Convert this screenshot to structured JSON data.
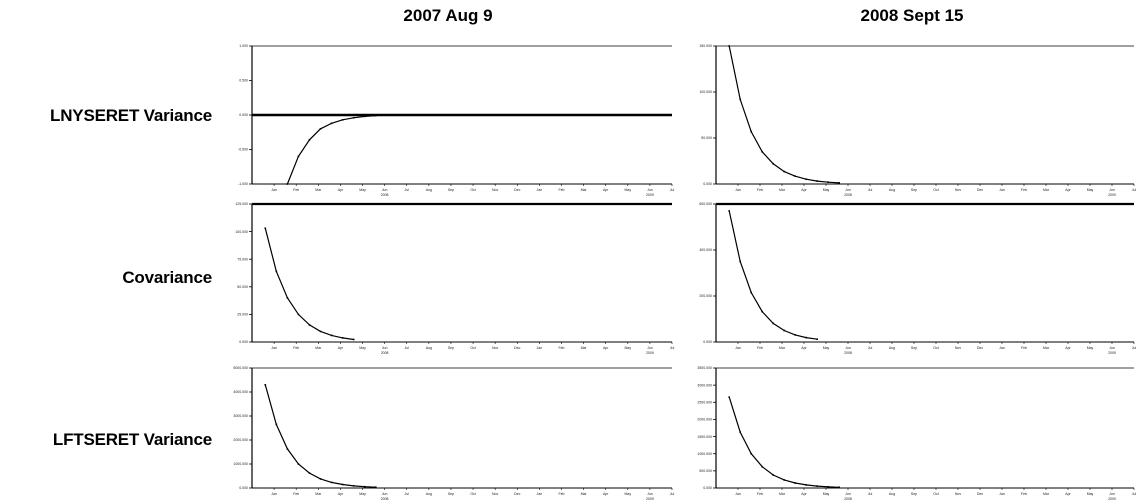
{
  "columns": [
    "2007 Aug 9",
    "2008 Sept 15"
  ],
  "rows": [
    "LNYSERET Variance",
    "Covariance",
    "LFTSERET Variance"
  ],
  "chart_data": [
    {
      "type": "line",
      "title": "2007 Aug 9",
      "row": "LNYSERET Variance",
      "x": [
        1,
        1.5,
        2,
        2.5,
        3,
        3.5,
        4,
        4.5,
        5
      ],
      "y": [
        -1.0,
        -0.6,
        -0.36,
        -0.2,
        -0.12,
        -0.07,
        -0.04,
        -0.02,
        -0.01
      ],
      "ylim": [
        -1.0,
        1.0
      ],
      "baseline": 0,
      "ytick_labels": [
        "-1.000",
        "-0.500",
        "0.000",
        "0.500",
        "1.000"
      ]
    },
    {
      "type": "line",
      "title": "2008 Sept 15",
      "row": "LNYSERET Variance",
      "x": [
        0,
        0.5,
        1,
        1.5,
        2,
        2.5,
        3,
        3.5,
        4,
        4.5,
        5
      ],
      "y": [
        150000,
        92000,
        57000,
        35000,
        22000,
        13500,
        8500,
        5200,
        3200,
        2000,
        1200
      ],
      "ylim": [
        0,
        150000
      ],
      "ytick_labels": [
        "0.000",
        "50.000",
        "100.000",
        "150.000"
      ]
    },
    {
      "type": "line",
      "title": "2007 Aug 9",
      "row": "Covariance",
      "x": [
        0,
        0.5,
        1,
        1.5,
        2,
        2.5,
        3,
        3.5,
        4
      ],
      "y": [
        103000,
        64000,
        40000,
        25000,
        15500,
        9600,
        6000,
        3700,
        2300
      ],
      "ylim": [
        0,
        125000
      ],
      "ytick_labels": [
        "0.000",
        "25.000",
        "50.000",
        "75.000",
        "100.000",
        "125.000"
      ]
    },
    {
      "type": "line",
      "title": "2008 Sept 15",
      "row": "Covariance",
      "x": [
        0,
        0.5,
        1,
        1.5,
        2,
        2.5,
        3,
        3.5,
        4
      ],
      "y": [
        570000,
        350000,
        215000,
        132000,
        81000,
        50000,
        31000,
        19000,
        12000
      ],
      "ylim": [
        0,
        600000
      ],
      "ytick_labels": [
        "0.000",
        "200.000",
        "400.000",
        "600.000"
      ]
    },
    {
      "type": "line",
      "title": "2007 Aug 9",
      "row": "LFTSERET Variance",
      "x": [
        0,
        0.5,
        1,
        1.5,
        2,
        2.5,
        3,
        3.5,
        4,
        4.5,
        5
      ],
      "y": [
        4300000,
        2650000,
        1630000,
        1000000,
        620000,
        380000,
        235000,
        145000,
        89000,
        55000,
        34000
      ],
      "ylim": [
        0,
        5000000
      ],
      "ytick_labels": [
        "0.000",
        "1000.000",
        "2000.000",
        "3000.000",
        "4000.000",
        "5000.000"
      ]
    },
    {
      "type": "line",
      "title": "2008 Sept 15",
      "row": "LFTSERET Variance",
      "x": [
        0,
        0.5,
        1,
        1.5,
        2,
        2.5,
        3,
        3.5,
        4,
        4.5,
        5
      ],
      "y": [
        2650000,
        1630000,
        1000000,
        620000,
        380000,
        235000,
        145000,
        89000,
        55000,
        34000,
        21000
      ],
      "ylim": [
        0,
        3500000
      ],
      "ytick_labels": [
        "0.000",
        "500.000",
        "1000.000",
        "1500.000",
        "2000.000",
        "2500.000",
        "3000.000",
        "3500.000"
      ]
    }
  ],
  "month_ticks": [
    "Jan",
    "Feb",
    "Mar",
    "Apr",
    "May",
    "Jun",
    "Jul",
    "Aug",
    "Sep",
    "Oct",
    "Nov",
    "Dec",
    "Jan",
    "Feb",
    "Mar",
    "Apr",
    "May",
    "Jun",
    "Jul"
  ],
  "year_labels": [
    "2008",
    "2009"
  ]
}
